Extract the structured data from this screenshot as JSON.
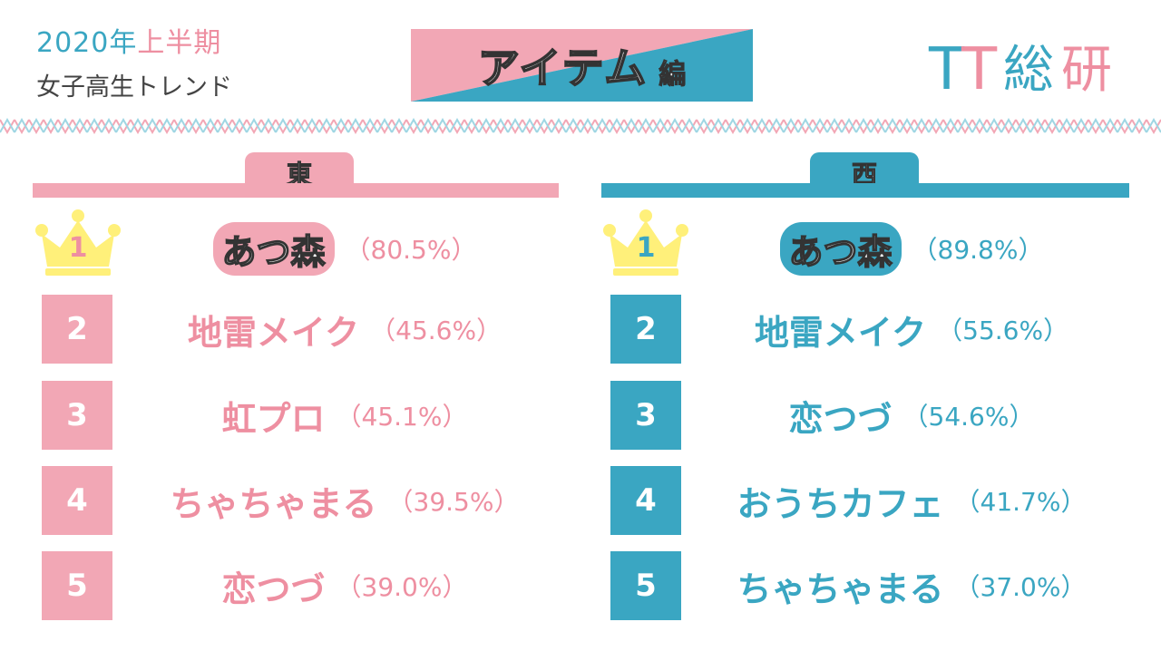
{
  "header": {
    "year_part1": "2020年",
    "year_part2": "上半期",
    "subtitle": "女子高生トレンド",
    "banner_main": "アイテム",
    "banner_sub": "編",
    "logo_text": "TT総研"
  },
  "colors": {
    "pink": "#f2a7b5",
    "pink_text": "#ee8fa1",
    "blue": "#3aa6c2",
    "crown": "#fff07a"
  },
  "east": {
    "heading": "東",
    "ranks": [
      {
        "rank": "1",
        "name": "あつ森",
        "pct": "（80.5%）"
      },
      {
        "rank": "2",
        "name": "地雷メイク",
        "pct": "（45.6%）"
      },
      {
        "rank": "3",
        "name": "虹プロ",
        "pct": "（45.1%）"
      },
      {
        "rank": "4",
        "name": "ちゃちゃまる",
        "pct": "（39.5%）"
      },
      {
        "rank": "5",
        "name": "恋つづ",
        "pct": "（39.0%）"
      }
    ]
  },
  "west": {
    "heading": "西",
    "ranks": [
      {
        "rank": "1",
        "name": "あつ森",
        "pct": "（89.8%）"
      },
      {
        "rank": "2",
        "name": "地雷メイク",
        "pct": "（55.6%）"
      },
      {
        "rank": "3",
        "name": "恋つづ",
        "pct": "（54.6%）"
      },
      {
        "rank": "4",
        "name": "おうちカフェ",
        "pct": "（41.7%）"
      },
      {
        "rank": "5",
        "name": "ちゃちゃまる",
        "pct": "（37.0%）"
      }
    ]
  }
}
